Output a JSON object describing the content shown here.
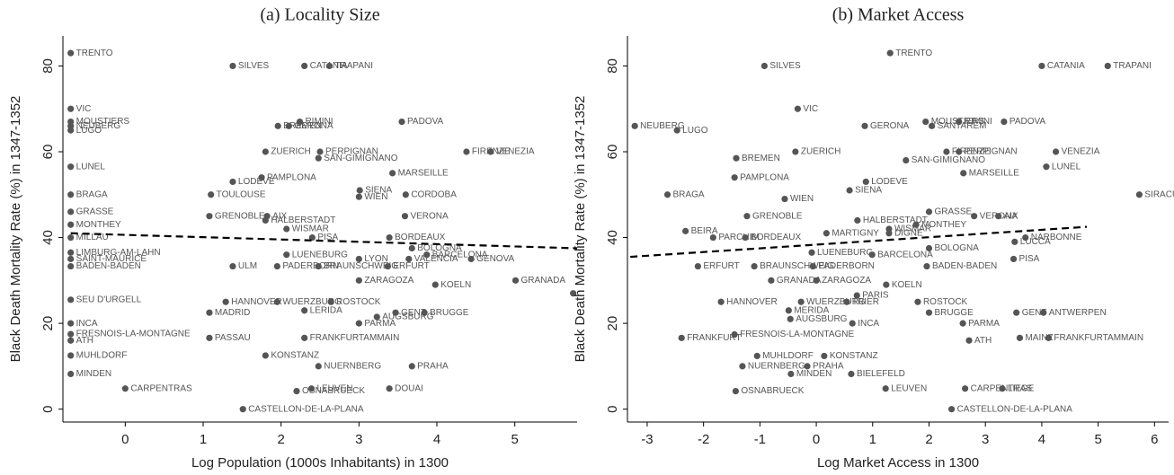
{
  "chart_data": [
    {
      "type": "scatter",
      "title": "(a)  Locality Size",
      "xlabel": "Log Population (1000s Inhabitants) in 1300",
      "ylabel": "Black Death Mortality Rate (%) in 1347-1352",
      "color": "#555555",
      "xlim": [
        -0.8,
        5.8
      ],
      "ylim": [
        -3,
        87
      ],
      "xticks": [
        0,
        1,
        2,
        3,
        4,
        5
      ],
      "yticks": [
        0,
        20,
        40,
        60,
        80
      ],
      "fit": {
        "x": [
          -0.7,
          5.8
        ],
        "y": [
          41,
          37.5
        ]
      },
      "point_labels": [
        "TRENTO",
        "SILVES",
        "CATANIA",
        "TRAPANI",
        "VIC",
        "MOUSTIERS",
        "NEUBERG",
        "LUGO",
        "BREMEN",
        "GERONA",
        "RIMINI",
        "PADOVA",
        "ZUERICH",
        "PERPIGNAN",
        "FIRENZE",
        "VENEZIA",
        "SAN-GIMIGNANO",
        "LUNEL",
        "MARSEILLE",
        "LODEVE",
        "PAMPLONA",
        "BRAGA",
        "TOULOUSE",
        "SIENA",
        "CORDOBA",
        "WIEN",
        "GRASSE",
        "GRENOBLE",
        "AIX",
        "HALBERSTADT",
        "VERONA",
        "MONTHEY",
        "WISMAR",
        "MILLAU",
        "PISA",
        "BORDEAUX",
        "BOLOGNA",
        "LIMBURG-AM-LAHN",
        "LUENEBURG",
        "BARCELONA",
        "SAINT-MAURICE",
        "LYON",
        "VALENCIA",
        "GENOVA",
        "BADEN-BADEN",
        "ULM",
        "PADERBORN",
        "BRAUNSCHWEIG",
        "ERFURT",
        "ZARAGOZA",
        "KOELN",
        "GRANADA",
        null,
        "SEU D'URGELL",
        "HANNOVER",
        "WUERZBURG",
        "ROSTOCK",
        "MADRID",
        "LERIDA",
        "GENT",
        "BRUGGE",
        "AUGSBURG",
        "PARMA",
        "INCA",
        "FRESNOIS-LA-MONTAGNE",
        "ATH",
        "PASSAU",
        "FRANKFURTAMMAIN",
        "MUHLDORF",
        "KONSTANZ",
        "NUERNBERG",
        "PRAHA",
        "MINDEN",
        "CARPENTRAS",
        "LEUVEN",
        "DOUAI",
        "OSNABRUECK",
        "CASTELLON-DE-LA-PLANA"
      ],
      "x": [
        -0.7,
        1.38,
        2.3,
        2.62,
        -0.7,
        -0.7,
        -0.7,
        -0.7,
        1.96,
        2.1,
        2.24,
        3.55,
        1.8,
        2.5,
        4.38,
        4.69,
        2.48,
        -0.7,
        3.43,
        1.38,
        1.75,
        -0.7,
        1.1,
        3.01,
        3.6,
        3.0,
        -0.7,
        1.08,
        1.82,
        1.8,
        3.59,
        -0.7,
        2.07,
        -0.7,
        2.4,
        3.39,
        3.68,
        -0.7,
        2.07,
        3.87,
        -0.7,
        3.0,
        3.64,
        4.44,
        -0.7,
        1.38,
        1.95,
        2.48,
        3.37,
        3.0,
        3.98,
        5.01,
        5.75,
        -0.7,
        1.29,
        1.95,
        2.64,
        1.08,
        2.3,
        3.47,
        3.84,
        3.23,
        3.0,
        -0.7,
        -0.7,
        -0.7,
        1.08,
        2.3,
        -0.7,
        1.8,
        2.48,
        3.68,
        -0.7,
        0,
        2.39,
        3.39,
        2.2,
        1.51
      ],
      "values": [
        83,
        80,
        80,
        80,
        70,
        67,
        66,
        65,
        66,
        66,
        67,
        67,
        60,
        60,
        60,
        60,
        58.5,
        56.5,
        55,
        53,
        54,
        50,
        50,
        51,
        50,
        49.5,
        46,
        45,
        45,
        44,
        45,
        43,
        42,
        40,
        40,
        40,
        37.5,
        36.5,
        36,
        36,
        35,
        35,
        35,
        35,
        33.3,
        33.3,
        33.3,
        33.3,
        33.3,
        30,
        29,
        30,
        27,
        25.5,
        25,
        25,
        25,
        22.5,
        23,
        22.5,
        22.5,
        21.5,
        20,
        20,
        17.5,
        16,
        16.6,
        16.6,
        12.5,
        12.5,
        10,
        10,
        8.2,
        4.8,
        4.8,
        4.8,
        4.2,
        0
      ]
    },
    {
      "type": "scatter",
      "title": "(b)  Market Access",
      "xlabel": "Log Market Access in 1300",
      "ylabel": "Black Death Mortality Rate (%) in 1347-1352",
      "color": "#555555",
      "xlim": [
        -3.35,
        6.25
      ],
      "ylim": [
        -3,
        87
      ],
      "xticks": [
        -3,
        -2,
        -1,
        0,
        1,
        2,
        3,
        4,
        5,
        6
      ],
      "yticks": [
        0,
        20,
        40,
        60,
        80
      ],
      "fit": {
        "x": [
          -3.3,
          4.8
        ],
        "y": [
          35.5,
          42.5
        ]
      },
      "point_labels": [
        "TRENTO",
        "SILVES",
        "CATANIA",
        "TRAPANI",
        "VIC",
        "NEUBERG",
        "LUGO",
        "GERONA",
        "MOUSTIERS",
        "SANTAREM",
        "RIMINI",
        "PADOVA",
        "BREMEN",
        "ZUERICH",
        "FIRENZE",
        "PERPIGNAN",
        "VENEZIA",
        "SAN-GIMIGNANO",
        "LUNEL",
        "PAMPLONA",
        "MARSEILLE",
        "LODEVE",
        "BRAGA",
        "SIRACUSA",
        "SIENA",
        "WIEN",
        "GRASSE",
        "VERONA",
        "AIX",
        "GRENOBLE",
        "HALBERSTADT",
        "MONTHEY",
        "WISMAR",
        "BEIRA",
        "PARCHIM",
        "BORDEAUX",
        "MARTIGNY",
        "DIGNE",
        "NARBONNE",
        "LUCCA",
        "BOLOGNA",
        "LUENEBURG",
        "BARCELONA",
        "PISA",
        "ERFURT",
        "BRAUNSCHWEIG",
        "PADERBORN",
        "BADEN-BADEN",
        "GRANADA",
        "ZARAGOZA",
        "KOELN",
        "PARIS",
        "HANNOVER",
        "WUERZBURG",
        "TRIER",
        "ROSTOCK",
        "MERIDA",
        "BRUGGE",
        "GENT",
        "ANTWERPEN",
        "AUGSBURG",
        "INCA",
        "PARMA",
        "FRANKFURT",
        "FRESNOIS-LA-MONTAGNE",
        "ATH",
        "MAINZ",
        "FRANKFURTAMMAIN",
        "MUHLDORF",
        "KONSTANZ",
        "NUERNBERG",
        "PRAHA",
        "MINDEN",
        "BIELEFELD",
        "OSNABRUECK",
        "LEUVEN",
        "CARPENTRAS",
        "LIEGE",
        "CASTELLON-DE-LA-PLANA"
      ],
      "x": [
        1.31,
        -0.92,
        4.0,
        5.17,
        -0.33,
        -3.22,
        -2.47,
        0.86,
        1.94,
        2.05,
        2.53,
        3.33,
        -1.42,
        -0.37,
        2.31,
        2.53,
        4.25,
        1.59,
        4.08,
        -1.45,
        2.61,
        0.88,
        -2.64,
        5.73,
        0.59,
        -0.56,
        2.0,
        2.8,
        3.23,
        -1.23,
        0.73,
        1.77,
        1.29,
        -2.32,
        -1.83,
        -1.26,
        0.18,
        1.29,
        3.71,
        3.52,
        2.0,
        -0.08,
        0.99,
        3.5,
        -2.1,
        -1.1,
        -0.06,
        1.96,
        -0.8,
        0,
        1.24,
        0.72,
        -1.69,
        -0.27,
        0.54,
        1.8,
        -0.49,
        2.0,
        3.55,
        4.03,
        -0.46,
        0.64,
        2.6,
        -2.39,
        -1.45,
        2.71,
        3.61,
        4.12,
        -1.05,
        0.14,
        -1.31,
        -0.16,
        -0.45,
        0.62,
        -1.43,
        1.23,
        2.64,
        3.3,
        2.4
      ],
      "values": [
        83,
        80,
        80,
        80,
        70,
        66,
        65,
        66,
        67,
        66,
        67,
        67,
        58.5,
        60,
        60,
        60,
        60,
        58,
        56.5,
        54,
        55,
        53,
        50,
        50,
        51,
        49,
        46,
        45,
        45,
        45,
        44,
        43,
        42,
        41.5,
        40,
        40,
        41,
        41,
        40,
        39,
        37.5,
        36.5,
        36,
        35,
        33.3,
        33.3,
        33.3,
        33.3,
        30,
        30,
        29,
        26.5,
        25,
        25,
        25,
        25,
        23,
        22.5,
        22.5,
        22.5,
        21,
        20,
        20,
        16.6,
        17.4,
        16,
        16.6,
        16.6,
        12.4,
        12.4,
        10,
        10,
        8.2,
        8.2,
        4.2,
        4.8,
        4.8,
        4.8,
        0
      ]
    }
  ]
}
